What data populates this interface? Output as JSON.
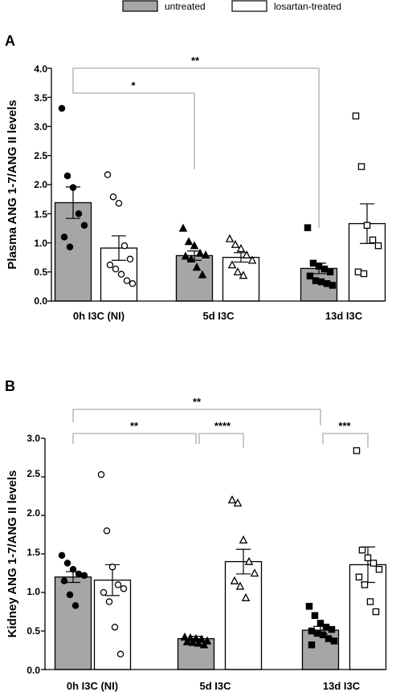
{
  "legend": {
    "items": [
      {
        "label": "untreated",
        "fill": "#a6a6a6"
      },
      {
        "label": "losartan-treated",
        "fill": "#ffffff"
      }
    ]
  },
  "chart_data": [
    {
      "type": "bar",
      "panel_label": "A",
      "ylabel": "Plasma ANG 1-7/ANG II levels",
      "ylim": [
        0,
        4.0
      ],
      "yticks": [
        "0.0",
        "0.5",
        "1.0",
        "1.5",
        "2.0",
        "2.5",
        "3.0",
        "3.5",
        "4.0"
      ],
      "categories": [
        "0h I3C (NI)",
        "5d I3C",
        "13d I3C"
      ],
      "series": [
        {
          "name": "untreated",
          "values": [
            1.69,
            0.78,
            0.56
          ],
          "sem": [
            0.27,
            0.08,
            0.09
          ],
          "points": [
            [
              3.31,
              2.15,
              1.95,
              1.5,
              1.3,
              1.1,
              0.93
            ],
            [
              1.25,
              1.02,
              0.95,
              0.82,
              0.79,
              0.77,
              0.72,
              0.58,
              0.45
            ],
            [
              1.26,
              0.65,
              0.6,
              0.55,
              0.5,
              0.43,
              0.35,
              0.33,
              0.3,
              0.27
            ]
          ],
          "markers": [
            "circle",
            "triangle",
            "square"
          ]
        },
        {
          "name": "losartan-treated",
          "values": [
            0.91,
            0.75,
            1.33
          ],
          "sem": [
            0.21,
            0.08,
            0.34
          ],
          "points": [
            [
              2.17,
              1.79,
              1.68,
              0.95,
              0.72,
              0.62,
              0.55,
              0.46,
              0.35,
              0.3
            ],
            [
              1.07,
              0.97,
              0.9,
              0.79,
              0.7,
              0.62,
              0.5,
              0.44
            ],
            [
              3.18,
              2.31,
              1.3,
              1.05,
              0.95,
              0.5,
              0.47
            ]
          ],
          "markers": [
            "circle",
            "triangle",
            "square"
          ]
        }
      ],
      "annotations": [
        {
          "text": "**",
          "between": [
            "0h I3C (NI) untreated",
            "13d I3C untreated"
          ]
        },
        {
          "text": "*",
          "between": [
            "0h I3C (NI) untreated",
            "5d I3C untreated"
          ]
        }
      ]
    },
    {
      "type": "bar",
      "panel_label": "B",
      "ylabel": "Kidney ANG 1-7/ANG II levels",
      "ylim": [
        0,
        3.0
      ],
      "yticks": [
        "0.0",
        "0.5",
        "1.0",
        "1.5",
        "2.0",
        "2.5",
        "3.0"
      ],
      "categories": [
        "0h I3C (NI)",
        "5d I3C",
        "13d I3C"
      ],
      "series": [
        {
          "name": "untreated",
          "values": [
            1.2,
            0.4,
            0.51
          ],
          "sem": [
            0.07,
            0.03,
            0.05
          ],
          "points": [
            [
              1.48,
              1.38,
              1.3,
              1.24,
              1.22,
              1.15,
              0.97,
              0.83
            ],
            [
              0.42,
              0.41,
              0.4,
              0.39,
              0.37,
              0.36,
              0.35,
              0.34,
              0.32
            ],
            [
              0.82,
              0.7,
              0.6,
              0.55,
              0.52,
              0.5,
              0.47,
              0.45,
              0.4,
              0.37,
              0.32
            ]
          ],
          "markers": [
            "circle",
            "triangle",
            "square"
          ]
        },
        {
          "name": "losartan-treated",
          "values": [
            1.16,
            1.4,
            1.36
          ],
          "sem": [
            0.2,
            0.16,
            0.23
          ],
          "points": [
            [
              2.53,
              1.8,
              1.33,
              1.1,
              1.05,
              1.0,
              0.88,
              0.55,
              0.2
            ],
            [
              2.2,
              2.16,
              1.68,
              1.4,
              1.25,
              1.15,
              1.08,
              0.93
            ],
            [
              2.84,
              1.55,
              1.45,
              1.38,
              1.3,
              1.2,
              1.1,
              0.88,
              0.75
            ]
          ],
          "markers": [
            "circle",
            "triangle",
            "square"
          ]
        }
      ],
      "annotations": [
        {
          "text": "**",
          "between": [
            "0h I3C (NI) untreated",
            "13d I3C untreated"
          ]
        },
        {
          "text": "**",
          "between": [
            "0h I3C (NI) untreated",
            "5d I3C untreated"
          ]
        },
        {
          "text": "****",
          "between": [
            "5d I3C untreated",
            "5d I3C losartan-treated"
          ]
        },
        {
          "text": "***",
          "between": [
            "13d I3C untreated",
            "13d I3C losartan-treated"
          ]
        }
      ]
    }
  ]
}
